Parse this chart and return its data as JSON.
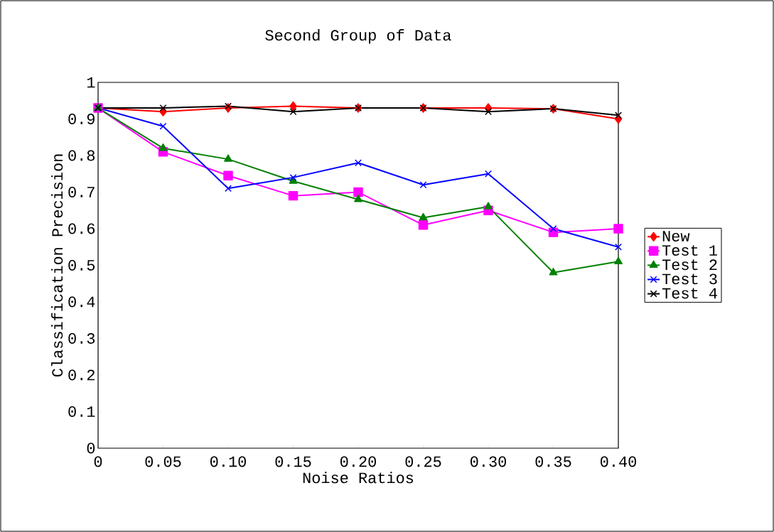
{
  "chart_data": {
    "type": "line",
    "title": "Second Group of Data",
    "xlabel": "Noise Ratios",
    "ylabel": "Classification Precision",
    "categories": [
      "0",
      "0.05",
      "0.10",
      "0.15",
      "0.20",
      "0.25",
      "0.30",
      "0.35",
      "0.40"
    ],
    "ylim": [
      0,
      1
    ],
    "yticks": [
      0,
      0.1,
      0.2,
      0.3,
      0.4,
      0.5,
      0.6,
      0.7,
      0.8,
      0.9,
      1
    ],
    "legend": "right",
    "line_style": "solid",
    "series": [
      {
        "name": "New",
        "color": "#ff0000",
        "marker": "diamond",
        "values": [
          0.93,
          0.92,
          0.93,
          0.935,
          0.93,
          0.93,
          0.93,
          0.928,
          0.9
        ]
      },
      {
        "name": "Test 1",
        "color": "#ff00ff",
        "marker": "square",
        "values": [
          0.93,
          0.81,
          0.745,
          0.69,
          0.7,
          0.61,
          0.65,
          0.59,
          0.6
        ]
      },
      {
        "name": "Test 2",
        "color": "#008000",
        "marker": "triangle",
        "values": [
          0.93,
          0.82,
          0.79,
          0.73,
          0.68,
          0.63,
          0.66,
          0.48,
          0.51
        ]
      },
      {
        "name": "Test 3",
        "color": "#0000ff",
        "marker": "cross",
        "values": [
          0.93,
          0.88,
          0.71,
          0.74,
          0.78,
          0.72,
          0.75,
          0.6,
          0.55
        ]
      },
      {
        "name": "Test 4",
        "color": "#000000",
        "marker": "cross",
        "values": [
          0.93,
          0.93,
          0.935,
          0.92,
          0.93,
          0.93,
          0.92,
          0.928,
          0.91
        ]
      }
    ]
  }
}
